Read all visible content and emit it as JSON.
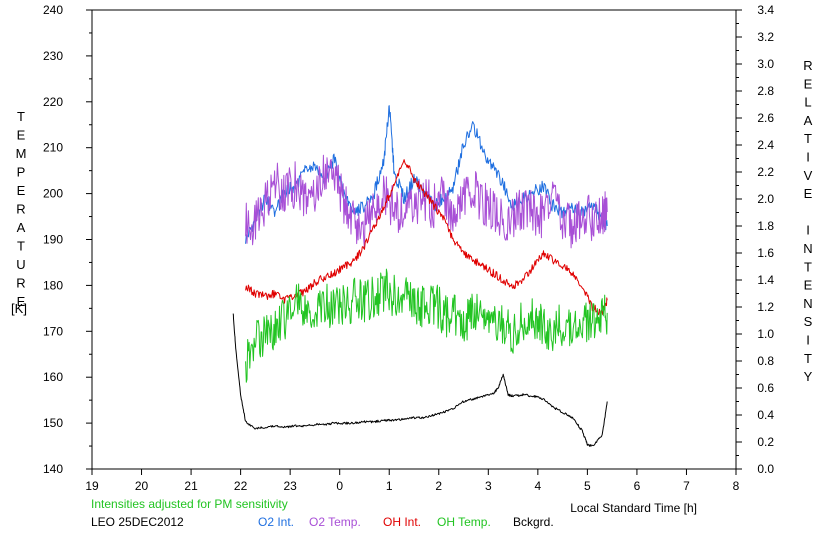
{
  "chart_data": {
    "type": "line",
    "xlabel": "Local Standard Time [h]",
    "ylabel_left": "TEMPERATURE",
    "ylabel_left_unit": "[K]",
    "ylabel_right": "RELATIVE INTENSITY",
    "x_tick_labels": [
      "19",
      "20",
      "21",
      "22",
      "23",
      "0",
      "1",
      "2",
      "3",
      "4",
      "5",
      "6",
      "7",
      "8"
    ],
    "xlim": [
      19,
      32
    ],
    "ylim_left": [
      140,
      240
    ],
    "ylim_right": [
      0.0,
      3.4
    ],
    "y_left_ticks": [
      140,
      150,
      160,
      170,
      180,
      190,
      200,
      210,
      220,
      230,
      240
    ],
    "y_right_ticks": [
      "0.0",
      "0.2",
      "0.4",
      "0.6",
      "0.8",
      "1.0",
      "1.2",
      "1.4",
      "1.6",
      "1.8",
      "2.0",
      "2.2",
      "2.4",
      "2.6",
      "2.8",
      "3.0",
      "3.2",
      "3.4"
    ],
    "note": "Intensities adjusted for PM sensitivity",
    "station_date": "LEO 25DEC2012",
    "grid": false,
    "series": [
      {
        "name": "O2 Int.",
        "color": "#1f6fe0",
        "axis": "right",
        "x": [
          22.1,
          22.3,
          22.5,
          22.7,
          22.9,
          23.1,
          23.3,
          23.5,
          23.7,
          23.9,
          24.1,
          24.3,
          24.5,
          24.7,
          24.9,
          25.0,
          25.1,
          25.3,
          25.5,
          25.7,
          25.9,
          26.1,
          26.3,
          26.5,
          26.7,
          26.9,
          27.1,
          27.3,
          27.5,
          27.7,
          27.9,
          28.1,
          28.3,
          28.5,
          28.7,
          28.9,
          29.1,
          29.3,
          29.4
        ],
        "y": [
          1.7,
          1.85,
          2.0,
          1.9,
          2.05,
          2.1,
          2.2,
          2.25,
          2.15,
          2.3,
          2.0,
          1.9,
          1.95,
          2.05,
          2.3,
          2.7,
          2.2,
          2.0,
          2.15,
          2.05,
          1.95,
          2.0,
          2.1,
          2.4,
          2.55,
          2.35,
          2.25,
          2.1,
          1.95,
          2.0,
          2.05,
          2.1,
          1.95,
          1.9,
          1.95,
          1.9,
          1.95,
          1.85,
          1.8
        ]
      },
      {
        "name": "O2 Temp.",
        "color": "#a84fd6",
        "axis": "left",
        "x": [
          22.1,
          22.3,
          22.5,
          22.7,
          22.9,
          23.1,
          23.3,
          23.5,
          23.7,
          23.9,
          24.1,
          24.3,
          24.5,
          24.7,
          24.9,
          25.1,
          25.3,
          25.5,
          25.7,
          25.9,
          26.1,
          26.3,
          26.5,
          26.7,
          26.9,
          27.1,
          27.3,
          27.5,
          27.7,
          27.9,
          28.1,
          28.3,
          28.5,
          28.7,
          28.9,
          29.1,
          29.3,
          29.4
        ],
        "y": [
          193,
          194,
          198,
          203,
          200,
          202,
          199,
          201,
          205,
          203,
          198,
          194,
          192,
          197,
          200,
          196,
          195,
          198,
          199,
          197,
          200,
          195,
          199,
          201,
          198,
          196,
          194,
          195,
          197,
          196,
          195,
          198,
          194,
          193,
          196,
          194,
          195,
          196
        ]
      },
      {
        "name": "OH Int.",
        "color": "#e00000",
        "axis": "right",
        "x": [
          22.1,
          22.3,
          22.5,
          22.7,
          22.9,
          23.1,
          23.3,
          23.5,
          23.7,
          23.9,
          24.1,
          24.3,
          24.5,
          24.7,
          24.9,
          25.1,
          25.3,
          25.5,
          25.7,
          25.9,
          26.1,
          26.3,
          26.5,
          26.7,
          26.9,
          27.1,
          27.3,
          27.5,
          27.7,
          27.9,
          28.1,
          28.3,
          28.5,
          28.7,
          28.9,
          29.1,
          29.3,
          29.4
        ],
        "y": [
          1.35,
          1.3,
          1.28,
          1.3,
          1.25,
          1.28,
          1.32,
          1.38,
          1.42,
          1.45,
          1.5,
          1.55,
          1.65,
          1.8,
          1.95,
          2.1,
          2.3,
          2.15,
          2.05,
          1.95,
          1.85,
          1.7,
          1.6,
          1.55,
          1.5,
          1.45,
          1.4,
          1.35,
          1.4,
          1.5,
          1.6,
          1.55,
          1.5,
          1.45,
          1.35,
          1.2,
          1.15,
          1.25
        ]
      },
      {
        "name": "OH Temp.",
        "color": "#22c422",
        "axis": "left",
        "x": [
          22.1,
          22.3,
          22.5,
          22.7,
          22.9,
          23.1,
          23.3,
          23.5,
          23.7,
          23.9,
          24.1,
          24.3,
          24.5,
          24.7,
          24.9,
          25.1,
          25.3,
          25.5,
          25.7,
          25.9,
          26.1,
          26.3,
          26.5,
          26.7,
          26.9,
          27.1,
          27.3,
          27.5,
          27.7,
          27.9,
          28.1,
          28.3,
          28.5,
          28.7,
          28.9,
          29.1,
          29.3,
          29.4
        ],
        "y": [
          162,
          168,
          170,
          171,
          173,
          176,
          175,
          174,
          176,
          175,
          176,
          177,
          176,
          178,
          179,
          178,
          177,
          176,
          175,
          176,
          174,
          173,
          172,
          174,
          173,
          172,
          171,
          170,
          172,
          173,
          171,
          170,
          172,
          171,
          173,
          172,
          175,
          174
        ]
      },
      {
        "name": "Bckgrd.",
        "color": "#000000",
        "axis": "right",
        "x": [
          21.85,
          21.9,
          22.0,
          22.1,
          22.3,
          22.5,
          22.7,
          22.9,
          23.1,
          23.3,
          23.5,
          23.7,
          23.9,
          24.1,
          24.3,
          24.5,
          24.7,
          24.9,
          25.1,
          25.3,
          25.5,
          25.7,
          25.9,
          26.1,
          26.3,
          26.5,
          26.7,
          26.9,
          27.1,
          27.2,
          27.3,
          27.4,
          27.5,
          27.7,
          27.9,
          28.1,
          28.3,
          28.5,
          28.7,
          28.9,
          29.0,
          29.1,
          29.3,
          29.4
        ],
        "y": [
          1.15,
          0.9,
          0.55,
          0.35,
          0.3,
          0.31,
          0.32,
          0.31,
          0.32,
          0.32,
          0.33,
          0.33,
          0.34,
          0.34,
          0.34,
          0.35,
          0.35,
          0.36,
          0.36,
          0.37,
          0.38,
          0.38,
          0.4,
          0.42,
          0.45,
          0.5,
          0.52,
          0.54,
          0.56,
          0.6,
          0.7,
          0.55,
          0.54,
          0.55,
          0.54,
          0.52,
          0.46,
          0.42,
          0.38,
          0.28,
          0.18,
          0.17,
          0.25,
          0.5
        ]
      }
    ]
  },
  "legend": {
    "note": "Intensities adjusted for PM sensitivity",
    "station_date": "LEO 25DEC2012",
    "items": [
      {
        "label": "O2 Int.",
        "color": "#1f6fe0"
      },
      {
        "label": "O2 Temp.",
        "color": "#a84fd6"
      },
      {
        "label": "OH Int.",
        "color": "#e00000"
      },
      {
        "label": "OH Temp.",
        "color": "#22c422"
      },
      {
        "label": "Bckgrd.",
        "color": "#000000"
      }
    ]
  }
}
